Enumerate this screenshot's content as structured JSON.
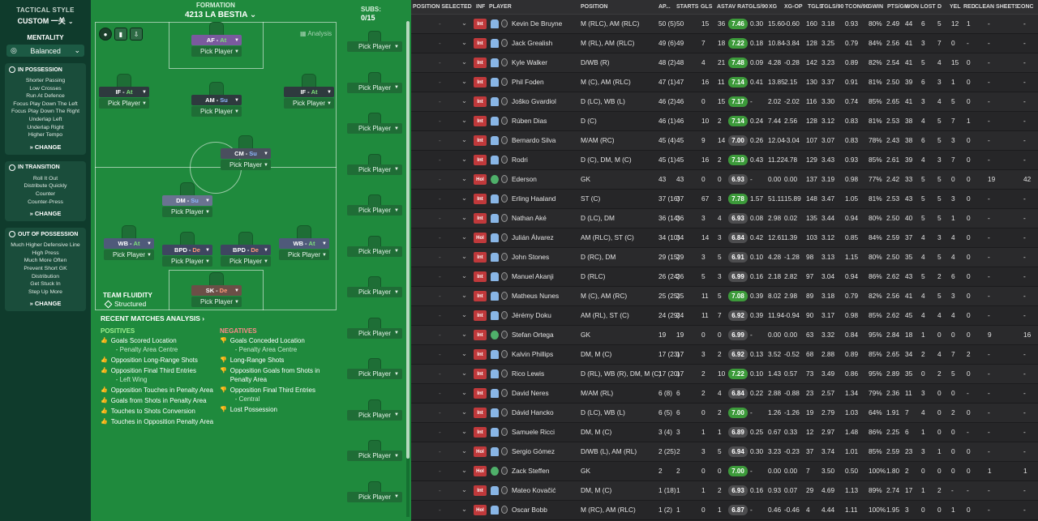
{
  "sidebar": {
    "heading": "TACTICAL STYLE",
    "style": "CUSTOM 一关",
    "mentality_label": "MENTALITY",
    "mentality_value": "Balanced",
    "cards": [
      {
        "title": "IN POSSESSION",
        "items": [
          "Shorter Passing",
          "Low Crosses",
          "Run At Defence",
          "Focus Play Down The Left",
          "Focus Play Down The Right",
          "Underlap Left",
          "Underlap Right",
          "Higher Tempo"
        ],
        "change": "CHANGE"
      },
      {
        "title": "IN TRANSITION",
        "items": [
          "Roll It Out",
          "Distribute Quickly",
          "Counter",
          "Counter-Press"
        ],
        "change": "CHANGE"
      },
      {
        "title": "OUT OF POSSESSION",
        "items": [
          "Much Higher Defensive Line",
          "High Press",
          "Much More Often",
          "Prevent Short GK",
          "Distribution",
          "Get Stuck In",
          "Step Up More"
        ],
        "change": "CHANGE"
      }
    ]
  },
  "pitch": {
    "formation_label": "FORMATION",
    "formation_name": "4213 LA BESTIA",
    "subs_label": "SUBS:",
    "subs_count": "0/15",
    "analysis": "Analysis",
    "pick": "Pick Player",
    "positions": [
      {
        "role": "AF",
        "duty": "At",
        "duty_class": "at",
        "color": "#7a5a9e"
      },
      {
        "role": "IF",
        "duty": "At",
        "duty_class": "at",
        "color": "#2e3a3e"
      },
      {
        "role": "AM",
        "duty": "Su",
        "duty_class": "su",
        "color": "#2e3a3e"
      },
      {
        "role": "IF",
        "duty": "At",
        "duty_class": "at",
        "color": "#2e3a3e"
      },
      {
        "role": "CM",
        "duty": "Su",
        "duty_class": "su",
        "color": "#4a4f5e"
      },
      {
        "role": "DM",
        "duty": "Su",
        "duty_class": "su",
        "color": "#6a7391"
      },
      {
        "role": "WB",
        "duty": "At",
        "duty_class": "at",
        "color": "#4f5a7a"
      },
      {
        "role": "BPD",
        "duty": "De",
        "duty_class": "de",
        "color": "#3e4660"
      },
      {
        "role": "BPD",
        "duty": "De",
        "duty_class": "de",
        "color": "#3e4660"
      },
      {
        "role": "WB",
        "duty": "At",
        "duty_class": "at",
        "color": "#4f5a7a"
      },
      {
        "role": "SK",
        "duty": "De",
        "duty_class": "de",
        "color": "#6b4f47"
      }
    ],
    "fluidity_label": "TEAM FLUIDITY",
    "fluidity_value": "Structured",
    "recent": "RECENT MATCHES ANALYSIS ›",
    "positives_label": "POSITIVES",
    "negatives_label": "NEGATIVES",
    "positives": [
      {
        "text": "Goals Scored Location",
        "sub": "- Penalty Area Centre"
      },
      {
        "text": "Opposition Long-Range Shots",
        "sub": ""
      },
      {
        "text": "Opposition Final Third Entries",
        "sub": "- Left Wing"
      },
      {
        "text": "Opposition Touches in Penalty Area",
        "sub": ""
      },
      {
        "text": "Goals from Shots in Penalty Area",
        "sub": ""
      },
      {
        "text": "Touches to Shots Conversion",
        "sub": ""
      },
      {
        "text": "Touches in Opposition Penalty Area",
        "sub": ""
      }
    ],
    "negatives": [
      {
        "text": "Goals Conceded Location",
        "sub": "- Penalty Area Centre"
      },
      {
        "text": "Long-Range Shots",
        "sub": ""
      },
      {
        "text": "Opposition Goals from Shots in Penalty Area",
        "sub": ""
      },
      {
        "text": "Opposition Final Third Entries",
        "sub": "- Central"
      },
      {
        "text": "Lost Possession",
        "sub": ""
      }
    ]
  },
  "table": {
    "headers": [
      "POSITION SELECTED",
      "INF",
      "PLAYER",
      "POSITION",
      "AP...",
      "STARTS",
      "GLS",
      "AST",
      "AV RAT",
      "GLS/90",
      "XG",
      "XG-OP",
      "TGLS",
      "TGLS/90",
      "TCON/90",
      "GWIN",
      "PTS/GM",
      "WON",
      "LOST",
      "D",
      "YEL",
      "RED",
      "CLEAN SHEETS",
      "CONC"
    ],
    "rows": [
      {
        "inf": "Int",
        "gk": false,
        "name": "Kevin De Bruyne",
        "pos": "M (RLC), AM (RLC)",
        "ap": "50 (5)",
        "starts": "50",
        "gls": "15",
        "ast": "36",
        "rat": "7.46",
        "hi": true,
        "g90": "0.30",
        "xg": "15.60",
        "xgop": "-0.60",
        "tgls": "160",
        "tg90": "3.18",
        "tc90": "0.93",
        "gwin": "80%",
        "ptsgm": "2.49",
        "won": "44",
        "lost": "6",
        "d": "5",
        "yel": "12",
        "red": "1",
        "cs": "-",
        "conc": "-"
      },
      {
        "inf": "Int",
        "gk": false,
        "name": "Jack Grealish",
        "pos": "M (RL), AM (RLC)",
        "ap": "49 (6)",
        "starts": "49",
        "gls": "7",
        "ast": "18",
        "rat": "7.22",
        "hi": true,
        "g90": "0.18",
        "xg": "10.84",
        "xgop": "-3.84",
        "tgls": "128",
        "tg90": "3.25",
        "tc90": "0.79",
        "gwin": "84%",
        "ptsgm": "2.56",
        "won": "41",
        "lost": "3",
        "d": "7",
        "yel": "0",
        "red": "-",
        "cs": "-",
        "conc": "-"
      },
      {
        "inf": "Int",
        "gk": false,
        "name": "Kyle Walker",
        "pos": "D/WB (R)",
        "ap": "48 (2)",
        "starts": "48",
        "gls": "4",
        "ast": "21",
        "rat": "7.48",
        "hi": true,
        "g90": "0.09",
        "xg": "4.28",
        "xgop": "-0.28",
        "tgls": "142",
        "tg90": "3.23",
        "tc90": "0.89",
        "gwin": "82%",
        "ptsgm": "2.54",
        "won": "41",
        "lost": "5",
        "d": "4",
        "yel": "15",
        "red": "0",
        "cs": "-",
        "conc": "-"
      },
      {
        "inf": "Int",
        "gk": false,
        "name": "Phil Foden",
        "pos": "M (C), AM (RLC)",
        "ap": "47 (1)",
        "starts": "47",
        "gls": "16",
        "ast": "11",
        "rat": "7.14",
        "hi": true,
        "g90": "0.41",
        "xg": "13.85",
        "xgop": "2.15",
        "tgls": "130",
        "tg90": "3.37",
        "tc90": "0.91",
        "gwin": "81%",
        "ptsgm": "2.50",
        "won": "39",
        "lost": "6",
        "d": "3",
        "yel": "1",
        "red": "0",
        "cs": "-",
        "conc": "-"
      },
      {
        "inf": "Int",
        "gk": false,
        "name": "Joško Gvardiol",
        "pos": "D (LC), WB (L)",
        "ap": "46 (2)",
        "starts": "46",
        "gls": "0",
        "ast": "15",
        "rat": "7.17",
        "hi": true,
        "g90": "-",
        "xg": "2.02",
        "xgop": "-2.02",
        "tgls": "116",
        "tg90": "3.30",
        "tc90": "0.74",
        "gwin": "85%",
        "ptsgm": "2.65",
        "won": "41",
        "lost": "3",
        "d": "4",
        "yel": "5",
        "red": "0",
        "cs": "-",
        "conc": "-"
      },
      {
        "inf": "Int",
        "gk": false,
        "name": "Rúben Dias",
        "pos": "D (C)",
        "ap": "46 (1)",
        "starts": "46",
        "gls": "10",
        "ast": "2",
        "rat": "7.14",
        "hi": true,
        "g90": "0.24",
        "xg": "7.44",
        "xgop": "2.56",
        "tgls": "128",
        "tg90": "3.12",
        "tc90": "0.83",
        "gwin": "81%",
        "ptsgm": "2.53",
        "won": "38",
        "lost": "4",
        "d": "5",
        "yel": "7",
        "red": "1",
        "cs": "-",
        "conc": "-"
      },
      {
        "inf": "Int",
        "gk": false,
        "name": "Bernardo Silva",
        "pos": "M/AM (RC)",
        "ap": "45 (4)",
        "starts": "45",
        "gls": "9",
        "ast": "14",
        "rat": "7.00",
        "hi": false,
        "g90": "0.26",
        "xg": "12.04",
        "xgop": "-3.04",
        "tgls": "107",
        "tg90": "3.07",
        "tc90": "0.83",
        "gwin": "78%",
        "ptsgm": "2.43",
        "won": "38",
        "lost": "6",
        "d": "5",
        "yel": "3",
        "red": "0",
        "cs": "-",
        "conc": "-"
      },
      {
        "inf": "Int",
        "gk": false,
        "name": "Rodri",
        "pos": "D (C), DM, M (C)",
        "ap": "45 (1)",
        "starts": "45",
        "gls": "16",
        "ast": "2",
        "rat": "7.19",
        "hi": true,
        "g90": "0.43",
        "xg": "11.22",
        "xgop": "4.78",
        "tgls": "129",
        "tg90": "3.43",
        "tc90": "0.93",
        "gwin": "85%",
        "ptsgm": "2.61",
        "won": "39",
        "lost": "4",
        "d": "3",
        "yel": "7",
        "red": "0",
        "cs": "-",
        "conc": "-"
      },
      {
        "inf": "Hol",
        "gk": true,
        "name": "Ederson",
        "pos": "GK",
        "ap": "43",
        "starts": "43",
        "gls": "0",
        "ast": "0",
        "rat": "6.93",
        "hi": false,
        "g90": "-",
        "xg": "0.00",
        "xgop": "0.00",
        "tgls": "137",
        "tg90": "3.19",
        "tc90": "0.98",
        "gwin": "77%",
        "ptsgm": "2.42",
        "won": "33",
        "lost": "5",
        "d": "5",
        "yel": "0",
        "red": "0",
        "cs": "19",
        "conc": "42"
      },
      {
        "inf": "Int",
        "gk": false,
        "name": "Erling Haaland",
        "pos": "ST (C)",
        "ap": "37 (16)",
        "starts": "37",
        "gls": "67",
        "ast": "3",
        "rat": "7.78",
        "hi": true,
        "g90": "1.57",
        "xg": "51.11",
        "xgop": "15.89",
        "tgls": "148",
        "tg90": "3.47",
        "tc90": "1.05",
        "gwin": "81%",
        "ptsgm": "2.53",
        "won": "43",
        "lost": "5",
        "d": "5",
        "yel": "3",
        "red": "0",
        "cs": "-",
        "conc": "-"
      },
      {
        "inf": "Int",
        "gk": false,
        "name": "Nathan Aké",
        "pos": "D (LC), DM",
        "ap": "36 (14)",
        "starts": "36",
        "gls": "3",
        "ast": "4",
        "rat": "6.93",
        "hi": false,
        "g90": "0.08",
        "xg": "2.98",
        "xgop": "0.02",
        "tgls": "135",
        "tg90": "3.44",
        "tc90": "0.94",
        "gwin": "80%",
        "ptsgm": "2.50",
        "won": "40",
        "lost": "5",
        "d": "5",
        "yel": "1",
        "red": "0",
        "cs": "-",
        "conc": "-"
      },
      {
        "inf": "Hol",
        "gk": false,
        "name": "Julián Álvarez",
        "pos": "AM (RLC), ST (C)",
        "ap": "34 (10)",
        "starts": "34",
        "gls": "14",
        "ast": "3",
        "rat": "6.84",
        "hi": false,
        "g90": "0.42",
        "xg": "12.61",
        "xgop": "1.39",
        "tgls": "103",
        "tg90": "3.12",
        "tc90": "0.85",
        "gwin": "84%",
        "ptsgm": "2.59",
        "won": "37",
        "lost": "4",
        "d": "3",
        "yel": "4",
        "red": "0",
        "cs": "-",
        "conc": "-"
      },
      {
        "inf": "Int",
        "gk": false,
        "name": "John Stones",
        "pos": "D (RC), DM",
        "ap": "29 (15)",
        "starts": "29",
        "gls": "3",
        "ast": "5",
        "rat": "6.91",
        "hi": false,
        "g90": "0.10",
        "xg": "4.28",
        "xgop": "-1.28",
        "tgls": "98",
        "tg90": "3.13",
        "tc90": "1.15",
        "gwin": "80%",
        "ptsgm": "2.50",
        "won": "35",
        "lost": "4",
        "d": "5",
        "yel": "4",
        "red": "0",
        "cs": "-",
        "conc": "-"
      },
      {
        "inf": "Int",
        "gk": false,
        "name": "Manuel Akanji",
        "pos": "D (RLC)",
        "ap": "26 (24)",
        "starts": "26",
        "gls": "5",
        "ast": "3",
        "rat": "6.99",
        "hi": false,
        "g90": "0.16",
        "xg": "2.18",
        "xgop": "2.82",
        "tgls": "97",
        "tg90": "3.04",
        "tc90": "0.94",
        "gwin": "86%",
        "ptsgm": "2.62",
        "won": "43",
        "lost": "5",
        "d": "2",
        "yel": "6",
        "red": "0",
        "cs": "-",
        "conc": "-"
      },
      {
        "inf": "Int",
        "gk": false,
        "name": "Matheus Nunes",
        "pos": "M (C), AM (RC)",
        "ap": "25 (25)",
        "starts": "25",
        "gls": "11",
        "ast": "5",
        "rat": "7.08",
        "hi": true,
        "g90": "0.39",
        "xg": "8.02",
        "xgop": "2.98",
        "tgls": "89",
        "tg90": "3.18",
        "tc90": "0.79",
        "gwin": "82%",
        "ptsgm": "2.56",
        "won": "41",
        "lost": "4",
        "d": "5",
        "yel": "3",
        "red": "0",
        "cs": "-",
        "conc": "-"
      },
      {
        "inf": "Int",
        "gk": false,
        "name": "Jérémy Doku",
        "pos": "AM (RL), ST (C)",
        "ap": "24 (29)",
        "starts": "24",
        "gls": "11",
        "ast": "7",
        "rat": "6.92",
        "hi": false,
        "g90": "0.39",
        "xg": "11.94",
        "xgop": "-0.94",
        "tgls": "90",
        "tg90": "3.17",
        "tc90": "0.98",
        "gwin": "85%",
        "ptsgm": "2.62",
        "won": "45",
        "lost": "4",
        "d": "4",
        "yel": "4",
        "red": "0",
        "cs": "-",
        "conc": "-"
      },
      {
        "inf": "Int",
        "gk": true,
        "name": "Stefan Ortega",
        "pos": "GK",
        "ap": "19",
        "starts": "19",
        "gls": "0",
        "ast": "0",
        "rat": "6.99",
        "hi": false,
        "g90": "-",
        "xg": "0.00",
        "xgop": "0.00",
        "tgls": "63",
        "tg90": "3.32",
        "tc90": "0.84",
        "gwin": "95%",
        "ptsgm": "2.84",
        "won": "18",
        "lost": "1",
        "d": "0",
        "yel": "0",
        "red": "0",
        "cs": "9",
        "conc": "16"
      },
      {
        "inf": "Int",
        "gk": false,
        "name": "Kalvin Phillips",
        "pos": "DM, M (C)",
        "ap": "17 (23)",
        "starts": "17",
        "gls": "3",
        "ast": "2",
        "rat": "6.92",
        "hi": false,
        "g90": "0.13",
        "xg": "3.52",
        "xgop": "-0.52",
        "tgls": "68",
        "tg90": "2.88",
        "tc90": "0.89",
        "gwin": "85%",
        "ptsgm": "2.65",
        "won": "34",
        "lost": "2",
        "d": "4",
        "yel": "7",
        "red": "2",
        "cs": "-",
        "conc": "-"
      },
      {
        "inf": "Int",
        "gk": false,
        "name": "Rico Lewis",
        "pos": "D (RL), WB (R), DM, M (C)",
        "ap": "17 (20)",
        "starts": "17",
        "gls": "2",
        "ast": "10",
        "rat": "7.22",
        "hi": true,
        "g90": "0.10",
        "xg": "1.43",
        "xgop": "0.57",
        "tgls": "73",
        "tg90": "3.49",
        "tc90": "0.86",
        "gwin": "95%",
        "ptsgm": "2.89",
        "won": "35",
        "lost": "0",
        "d": "2",
        "yel": "5",
        "red": "0",
        "cs": "-",
        "conc": "-"
      },
      {
        "inf": "Int",
        "gk": false,
        "name": "David Neres",
        "pos": "M/AM (RL)",
        "ap": "6 (8)",
        "starts": "6",
        "gls": "2",
        "ast": "4",
        "rat": "6.84",
        "hi": false,
        "g90": "0.22",
        "xg": "2.88",
        "xgop": "-0.88",
        "tgls": "23",
        "tg90": "2.57",
        "tc90": "1.34",
        "gwin": "79%",
        "ptsgm": "2.36",
        "won": "11",
        "lost": "3",
        "d": "0",
        "yel": "0",
        "red": "-",
        "cs": "-",
        "conc": "-"
      },
      {
        "inf": "Int",
        "gk": false,
        "name": "Dávid Hancko",
        "pos": "D (LC), WB (L)",
        "ap": "6 (5)",
        "starts": "6",
        "gls": "0",
        "ast": "2",
        "rat": "7.00",
        "hi": true,
        "g90": "-",
        "xg": "1.26",
        "xgop": "-1.26",
        "tgls": "19",
        "tg90": "2.79",
        "tc90": "1.03",
        "gwin": "64%",
        "ptsgm": "1.91",
        "won": "7",
        "lost": "4",
        "d": "0",
        "yel": "2",
        "red": "0",
        "cs": "-",
        "conc": "-"
      },
      {
        "inf": "Int",
        "gk": false,
        "name": "Samuele Ricci",
        "pos": "DM, M (C)",
        "ap": "3 (4)",
        "starts": "3",
        "gls": "1",
        "ast": "1",
        "rat": "6.89",
        "hi": false,
        "g90": "0.25",
        "xg": "0.67",
        "xgop": "0.33",
        "tgls": "12",
        "tg90": "2.97",
        "tc90": "1.48",
        "gwin": "86%",
        "ptsgm": "2.25",
        "won": "6",
        "lost": "1",
        "d": "0",
        "yel": "0",
        "red": "-",
        "cs": "-",
        "conc": "-"
      },
      {
        "inf": "Hol",
        "gk": false,
        "name": "Sergio Gómez",
        "pos": "D/WB (L), AM (RL)",
        "ap": "2 (25)",
        "starts": "2",
        "gls": "3",
        "ast": "5",
        "rat": "6.94",
        "hi": false,
        "g90": "0.30",
        "xg": "3.23",
        "xgop": "-0.23",
        "tgls": "37",
        "tg90": "3.74",
        "tc90": "1.01",
        "gwin": "85%",
        "ptsgm": "2.59",
        "won": "23",
        "lost": "3",
        "d": "1",
        "yel": "0",
        "red": "0",
        "cs": "-",
        "conc": "-"
      },
      {
        "inf": "Hol",
        "gk": true,
        "name": "Zack Steffen",
        "pos": "GK",
        "ap": "2",
        "starts": "2",
        "gls": "0",
        "ast": "0",
        "rat": "7.00",
        "hi": true,
        "g90": "-",
        "xg": "0.00",
        "xgop": "0.00",
        "tgls": "7",
        "tg90": "3.50",
        "tc90": "0.50",
        "gwin": "100%",
        "ptsgm": "1.80",
        "won": "2",
        "lost": "0",
        "d": "0",
        "yel": "0",
        "red": "0",
        "cs": "1",
        "conc": "1"
      },
      {
        "inf": "Int",
        "gk": false,
        "name": "Mateo Kovačić",
        "pos": "DM, M (C)",
        "ap": "1 (18)",
        "starts": "1",
        "gls": "1",
        "ast": "2",
        "rat": "6.93",
        "hi": false,
        "g90": "0.16",
        "xg": "0.93",
        "xgop": "0.07",
        "tgls": "29",
        "tg90": "4.69",
        "tc90": "1.13",
        "gwin": "89%",
        "ptsgm": "2.74",
        "won": "17",
        "lost": "1",
        "d": "2",
        "yel": "-",
        "red": "-",
        "cs": "-",
        "conc": "-"
      },
      {
        "inf": "Hol",
        "gk": false,
        "name": "Oscar Bobb",
        "pos": "M (RC), AM (RLC)",
        "ap": "1 (2)",
        "starts": "1",
        "gls": "0",
        "ast": "1",
        "rat": "6.87",
        "hi": false,
        "g90": "-",
        "xg": "0.46",
        "xgop": "-0.46",
        "tgls": "4",
        "tg90": "4.44",
        "tc90": "1.11",
        "gwin": "100%",
        "ptsgm": "1.95",
        "won": "3",
        "lost": "0",
        "d": "0",
        "yel": "1",
        "red": "0",
        "cs": "-",
        "conc": "-"
      }
    ],
    "colors": {
      "rating_high": "#3c9a3a",
      "rating_mid": "#4d4d4f",
      "badge": "#c0393b"
    }
  }
}
